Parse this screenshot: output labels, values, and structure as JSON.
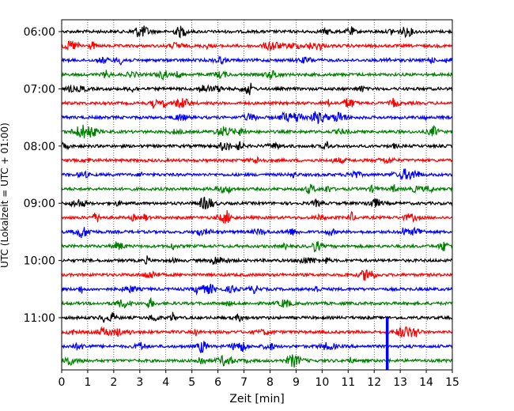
{
  "chart_data": {
    "type": "line",
    "title": "",
    "xlabel": "Zeit  [min]",
    "ylabel": "UTC (Lokalzeit = UTC + 01:00)",
    "xlim": [
      0,
      15
    ],
    "x_ticks": [
      "0",
      "1",
      "2",
      "3",
      "4",
      "5",
      "6",
      "7",
      "8",
      "9",
      "10",
      "11",
      "12",
      "13",
      "14",
      "15"
    ],
    "y_ticks": [
      "06:00",
      "07:00",
      "08:00",
      "09:00",
      "10:00",
      "11:00"
    ],
    "grid": "vertical dotted",
    "trace_interval_minutes": 15,
    "trace_count": 24,
    "trace_colors": [
      "#000000",
      "#ff0000",
      "#0000ff",
      "#008000"
    ],
    "event": {
      "x": 12.5,
      "trace_index": 22,
      "color": "#0000ff"
    },
    "series": [
      {
        "start": "06:00",
        "color": "#000000"
      },
      {
        "start": "06:15",
        "color": "#ff0000"
      },
      {
        "start": "06:30",
        "color": "#0000ff"
      },
      {
        "start": "06:45",
        "color": "#008000"
      },
      {
        "start": "07:00",
        "color": "#000000"
      },
      {
        "start": "07:15",
        "color": "#ff0000"
      },
      {
        "start": "07:30",
        "color": "#0000ff"
      },
      {
        "start": "07:45",
        "color": "#008000"
      },
      {
        "start": "08:00",
        "color": "#000000"
      },
      {
        "start": "08:15",
        "color": "#ff0000"
      },
      {
        "start": "08:30",
        "color": "#0000ff"
      },
      {
        "start": "08:45",
        "color": "#008000"
      },
      {
        "start": "09:00",
        "color": "#000000"
      },
      {
        "start": "09:15",
        "color": "#ff0000"
      },
      {
        "start": "09:30",
        "color": "#0000ff"
      },
      {
        "start": "09:45",
        "color": "#008000"
      },
      {
        "start": "10:00",
        "color": "#000000"
      },
      {
        "start": "10:15",
        "color": "#ff0000"
      },
      {
        "start": "10:30",
        "color": "#0000ff"
      },
      {
        "start": "10:45",
        "color": "#008000"
      },
      {
        "start": "11:00",
        "color": "#000000"
      },
      {
        "start": "11:15",
        "color": "#ff0000"
      },
      {
        "start": "11:30",
        "color": "#0000ff"
      },
      {
        "start": "11:45",
        "color": "#008000"
      }
    ]
  }
}
